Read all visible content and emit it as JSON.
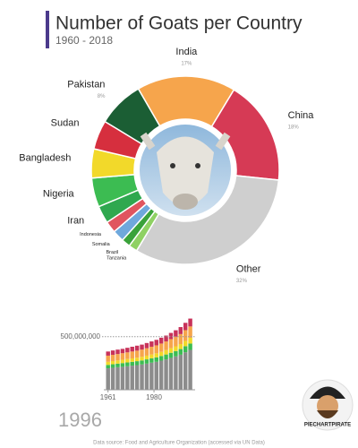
{
  "chart_data": [
    {
      "type": "pie",
      "title": "Number of Goats per Country",
      "subtitle": "1960 - 2018",
      "categories": [
        "India",
        "China",
        "Other",
        "Tanzania",
        "Brazil",
        "Somalia",
        "Indonesia",
        "Iran",
        "Nigeria",
        "Bangladesh",
        "Sudan",
        "Pakistan"
      ],
      "values": [
        17,
        18,
        32,
        1.5,
        1.5,
        2,
        2,
        3,
        5,
        5,
        5,
        8
      ],
      "value_labels": [
        "17%",
        "18%",
        "32%",
        null,
        null,
        null,
        null,
        null,
        null,
        null,
        null,
        "8%"
      ],
      "colors": [
        "#f6a54c",
        "#d63a55",
        "#cfcfcf",
        "#8fd163",
        "#3aa23a",
        "#6fa8dc",
        "#e0555f",
        "#2fa84f",
        "#3cbc52",
        "#f2d92a",
        "#d62f3e",
        "#1b5e34"
      ]
    },
    {
      "type": "bar",
      "stacked": true,
      "x": [
        1961,
        1963,
        1965,
        1967,
        1969,
        1971,
        1973,
        1975,
        1977,
        1979,
        1981,
        1983,
        1985,
        1987,
        1989,
        1991,
        1993,
        1995
      ],
      "series": [
        {
          "color": "#8c8c8c",
          "values": [
            202000000,
            207000000,
            212000000,
            216000000,
            221000000,
            227000000,
            232000000,
            238000000,
            246000000,
            255000000,
            263000000,
            274000000,
            286000000,
            300000000,
            314000000,
            330000000,
            353000000,
            375000000
          ]
        },
        {
          "color": "#3cbc52",
          "values": [
            32000000,
            33000000,
            34000000,
            35000000,
            36000000,
            36000000,
            37000000,
            38000000,
            40000000,
            41000000,
            42000000,
            44000000,
            46000000,
            48000000,
            50000000,
            53000000,
            57000000,
            60000000
          ]
        },
        {
          "color": "#f2d92a",
          "values": [
            29000000,
            30000000,
            30000000,
            31000000,
            32000000,
            32000000,
            33000000,
            34000000,
            35000000,
            36000000,
            38000000,
            39000000,
            41000000,
            43000000,
            45000000,
            47000000,
            50000000,
            54000000
          ]
        },
        {
          "color": "#f6a54c",
          "values": [
            58000000,
            59000000,
            60000000,
            62000000,
            63000000,
            65000000,
            66000000,
            68000000,
            70000000,
            73000000,
            75000000,
            78000000,
            82000000,
            86000000,
            90000000,
            94000000,
            101000000,
            107000000
          ]
        },
        {
          "color": "#c8325a",
          "values": [
            39000000,
            41000000,
            42000000,
            41000000,
            43000000,
            45000000,
            47000000,
            47000000,
            49000000,
            50000000,
            52000000,
            55000000,
            55000000,
            58000000,
            61000000,
            66000000,
            69000000,
            74000000
          ]
        }
      ],
      "xlim": [
        1960,
        1997
      ],
      "xticks": [
        1961,
        1980
      ],
      "ylim": [
        0,
        700000000
      ],
      "yticks": [
        {
          "value": 500000000,
          "label": "500,000,000"
        }
      ],
      "grid": true
    }
  ],
  "year": "1996",
  "source": "Data source: Food and Agriculture Organization (accessed via UN Data)",
  "logo": "PIECHARTPIRATE"
}
